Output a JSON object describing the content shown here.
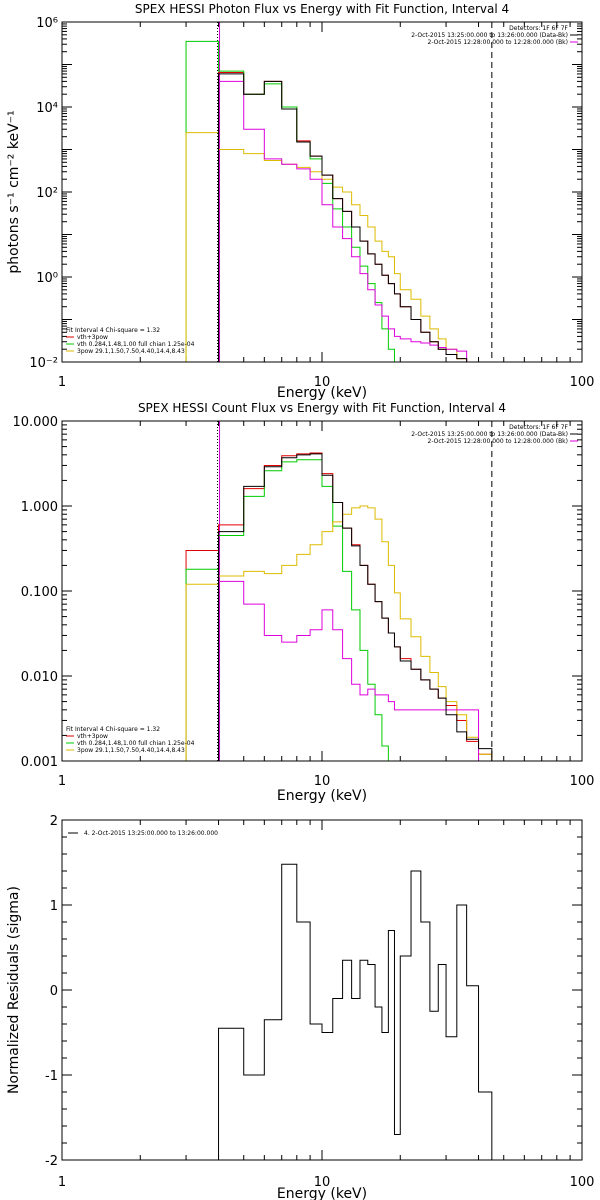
{
  "colors": {
    "background": "#ffffff",
    "axes": "#000000",
    "series_total": "#000000",
    "series_vth_3pow": "#e00000",
    "series_vth": "#00cc00",
    "series_3pow": "#ddbb00",
    "series_background": "#dd00dd",
    "fit_marker": "#000000",
    "bg_marker": "#cc00cc"
  },
  "chart_data": [
    {
      "type": "line",
      "title": "SPEX HESSI Photon Flux vs Energy with Fit Function, Interval 4",
      "xlabel": "Energy (keV)",
      "ylabel": "photons s⁻¹ cm⁻² keV⁻¹",
      "xscale": "log",
      "yscale": "log",
      "xlim": [
        1,
        100
      ],
      "ylim": [
        0.01,
        1000000
      ],
      "xticks": [
        1,
        10,
        100
      ],
      "xtick_labels": [
        "1",
        "10",
        "100"
      ],
      "yticks": [
        0.01,
        1,
        100,
        10000,
        1000000
      ],
      "ytick_labels": [
        "10⁻²",
        "10⁰",
        "10²",
        "10⁴",
        "10⁶"
      ],
      "vlines": [
        {
          "x": 4.0,
          "style": "dotted",
          "color_key": "fit_marker"
        },
        {
          "x": 4.0,
          "style": "solid",
          "color_key": "bg_marker"
        },
        {
          "x": 45,
          "style": "dashed",
          "color_key": "fit_marker"
        }
      ],
      "legend_top_right": [
        "Detectors: 1F 6F 7F",
        "2-Oct-2015 13:25:00.000 to 13:26:00.000 (Data-Bk)",
        "2-Oct-2015 12:28:00.000 to 12:28:00.000 (Bk)"
      ],
      "legend_top_right_colors": [
        "series_total",
        "series_background"
      ],
      "legend_bottom_left": [
        "Fit Interval  4    Chi-square = 1.32",
        "vth+3pow",
        "vth 0.284,1.48,1.00  full chian 1.25e-04",
        "3pow 29.1,1.50,7.50,4.40,14.4,8.43"
      ],
      "legend_bottom_left_colors": [
        "series_vth_3pow",
        "series_vth",
        "series_3pow"
      ],
      "edges": [
        3.0,
        4.0,
        5.0,
        6.0,
        7.0,
        8.0,
        9.0,
        10.0,
        11.0,
        12.0,
        13.0,
        14.0,
        15.0,
        16.0,
        17.0,
        18.0,
        19.0,
        20.0,
        22.0,
        24.0,
        26.0,
        28.0,
        30.0,
        33.0,
        36.0,
        40.0,
        45.0,
        50.0,
        55.0
      ],
      "series": [
        {
          "color_key": "series_vth_3pow",
          "values": [
            null,
            65000,
            20000,
            40000,
            10000,
            1600,
            700,
            250,
            70,
            35,
            15,
            7,
            3.5,
            2,
            1.1,
            0.7,
            0.4,
            0.2,
            0.1,
            0.05,
            0.03,
            0.02,
            0.015,
            0.012,
            null,
            null,
            null,
            null
          ]
        },
        {
          "color_key": "series_vth",
          "values": [
            350000,
            70000,
            20000,
            35000,
            10000,
            1500,
            600,
            160,
            40,
            15,
            5,
            1.8,
            0.7,
            0.25,
            0.06,
            0.02,
            0.01,
            null,
            null,
            null,
            null,
            null,
            null,
            null,
            null,
            null,
            null,
            null
          ]
        },
        {
          "color_key": "series_3pow",
          "values": [
            2500,
            1000,
            800,
            550,
            450,
            380,
            300,
            200,
            130,
            100,
            50,
            28,
            15,
            7,
            4,
            3,
            1.2,
            0.5,
            0.3,
            0.12,
            0.06,
            0.035,
            0.02,
            0.012,
            0.01,
            null,
            null,
            null
          ]
        },
        {
          "color_key": "series_background",
          "values": [
            null,
            40000,
            3000,
            600,
            450,
            350,
            200,
            50,
            15,
            8,
            3,
            1.2,
            0.5,
            0.22,
            0.12,
            0.06,
            0.04,
            0.035,
            0.03,
            0.028,
            0.025,
            0.022,
            0.02,
            0.018,
            null,
            null,
            null,
            null
          ]
        },
        {
          "color_key": "series_total",
          "values": [
            null,
            60000,
            20000,
            40000,
            9000,
            1500,
            700,
            250,
            70,
            35,
            15,
            7,
            3.5,
            2,
            1.1,
            0.7,
            0.4,
            0.2,
            0.1,
            0.05,
            0.03,
            0.02,
            0.015,
            0.012,
            null,
            null,
            null,
            null
          ]
        }
      ]
    },
    {
      "type": "line",
      "title": "SPEX HESSI Count Flux vs Energy with Fit Function, Interval 4",
      "xlabel": "Energy (keV)",
      "ylabel": "",
      "xscale": "log",
      "yscale": "log",
      "xlim": [
        1,
        100
      ],
      "ylim": [
        0.001,
        10
      ],
      "xticks": [
        1,
        10,
        100
      ],
      "xtick_labels": [
        "1",
        "10",
        "100"
      ],
      "yticks": [
        0.001,
        0.01,
        0.1,
        1,
        10
      ],
      "ytick_labels": [
        "0.001",
        "0.010",
        "0.100",
        "1.000",
        "10.000"
      ],
      "vlines": [
        {
          "x": 4.0,
          "style": "dotted",
          "color_key": "fit_marker"
        },
        {
          "x": 4.0,
          "style": "solid",
          "color_key": "bg_marker"
        },
        {
          "x": 45,
          "style": "dashed",
          "color_key": "fit_marker"
        }
      ],
      "legend_top_right": [
        "Detectors: 1F 6F 7F",
        "2-Oct-2015 13:25:00.000 to 13:26:00.000 (Data-Bk)",
        "2-Oct-2015 12:28:00.000 to 12:28:00.000 (Bk)"
      ],
      "legend_top_right_colors": [
        "series_total",
        "series_background"
      ],
      "legend_bottom_left": [
        "Fit Interval  4    Chi-square = 1.32",
        "vth+3pow",
        "vth 0.284,1.48,1.00  full chian 1.25e-04",
        "3pow 29.1,1.50,7.50,4.40,14.4,8.43"
      ],
      "legend_bottom_left_colors": [
        "series_vth_3pow",
        "series_vth",
        "series_3pow"
      ],
      "edges": [
        3.0,
        4.0,
        5.0,
        6.0,
        7.0,
        8.0,
        9.0,
        10.0,
        11.0,
        12.0,
        13.0,
        14.0,
        15.0,
        16.0,
        17.0,
        18.0,
        19.0,
        20.0,
        22.0,
        24.0,
        26.0,
        28.0,
        30.0,
        33.0,
        36.0,
        40.0,
        45.0,
        50.0,
        55.0
      ],
      "series": [
        {
          "color_key": "series_vth_3pow",
          "values": [
            0.3,
            0.6,
            1.6,
            3.0,
            3.9,
            4.1,
            4.2,
            2.4,
            1.1,
            0.55,
            0.35,
            0.2,
            0.12,
            0.075,
            0.048,
            0.032,
            0.022,
            0.016,
            0.012,
            0.009,
            0.007,
            0.0055,
            0.0045,
            0.003,
            0.0017,
            0.0012,
            null,
            null
          ]
        },
        {
          "color_key": "series_vth",
          "values": [
            0.18,
            0.45,
            1.3,
            2.6,
            3.3,
            3.5,
            3.5,
            1.7,
            0.58,
            0.17,
            0.06,
            0.02,
            0.008,
            0.0035,
            0.0015,
            0.001,
            null,
            null,
            null,
            null,
            null,
            null,
            null,
            null,
            null,
            null,
            null,
            null
          ]
        },
        {
          "color_key": "series_3pow",
          "values": [
            0.12,
            0.15,
            0.17,
            0.16,
            0.2,
            0.27,
            0.35,
            0.5,
            0.65,
            0.8,
            0.95,
            1.0,
            0.95,
            0.7,
            0.38,
            0.2,
            0.095,
            0.047,
            0.029,
            0.017,
            0.011,
            0.0075,
            0.005,
            0.0035,
            0.0019,
            0.0012,
            0.001,
            null
          ]
        },
        {
          "color_key": "series_background",
          "values": [
            null,
            0.13,
            0.07,
            0.03,
            0.025,
            0.03,
            0.035,
            0.06,
            0.035,
            0.016,
            0.008,
            0.006,
            0.007,
            0.006,
            0.006,
            0.005,
            0.004,
            0.004,
            0.004,
            0.004,
            0.004,
            0.004,
            0.004,
            0.004,
            0.004,
            null,
            null,
            null
          ]
        },
        {
          "color_key": "series_total",
          "values": [
            null,
            0.5,
            1.7,
            2.9,
            3.7,
            4.0,
            4.1,
            2.3,
            1.1,
            0.55,
            0.34,
            0.2,
            0.12,
            0.075,
            0.048,
            0.032,
            0.022,
            0.015,
            0.012,
            0.009,
            0.007,
            0.0055,
            0.0035,
            0.0022,
            0.0018,
            0.0014,
            null,
            null
          ]
        }
      ]
    },
    {
      "type": "line",
      "title": "",
      "xlabel": "Energy (keV)",
      "ylabel": "Normalized Residuals (sigma)",
      "xscale": "log",
      "yscale": "linear",
      "xlim": [
        1,
        100
      ],
      "ylim": [
        -2,
        2
      ],
      "xticks": [
        1,
        10,
        100
      ],
      "xtick_labels": [
        "1",
        "10",
        "100"
      ],
      "yticks": [
        -2,
        -1,
        0,
        1,
        2
      ],
      "ytick_labels": [
        "-2",
        "-1",
        "0",
        "1",
        "2"
      ],
      "legend_top_left": [
        "4.  2-Oct-2015 13:25:00.000 to 13:26:00.000"
      ],
      "legend_top_left_colors": [
        "series_total"
      ],
      "edges": [
        4.0,
        5.0,
        6.0,
        7.0,
        8.0,
        9.0,
        10.0,
        11.0,
        12.0,
        13.0,
        14.0,
        15.0,
        16.0,
        17.0,
        18.0,
        19.0,
        20.0,
        22.0,
        24.0,
        26.0,
        28.0,
        30.0,
        33.0,
        36.0,
        40.0,
        45.0
      ],
      "series": [
        {
          "color_key": "series_total",
          "values": [
            -0.45,
            -1.0,
            -0.35,
            1.48,
            0.8,
            -0.4,
            -0.5,
            -0.1,
            0.35,
            -0.1,
            0.35,
            0.3,
            -0.2,
            -0.5,
            0.7,
            -1.7,
            0.4,
            1.4,
            0.8,
            -0.25,
            0.3,
            -0.55,
            1.0,
            0.05,
            -1.2
          ]
        }
      ],
      "step_start": -2.1,
      "step_end": -2.1
    }
  ]
}
